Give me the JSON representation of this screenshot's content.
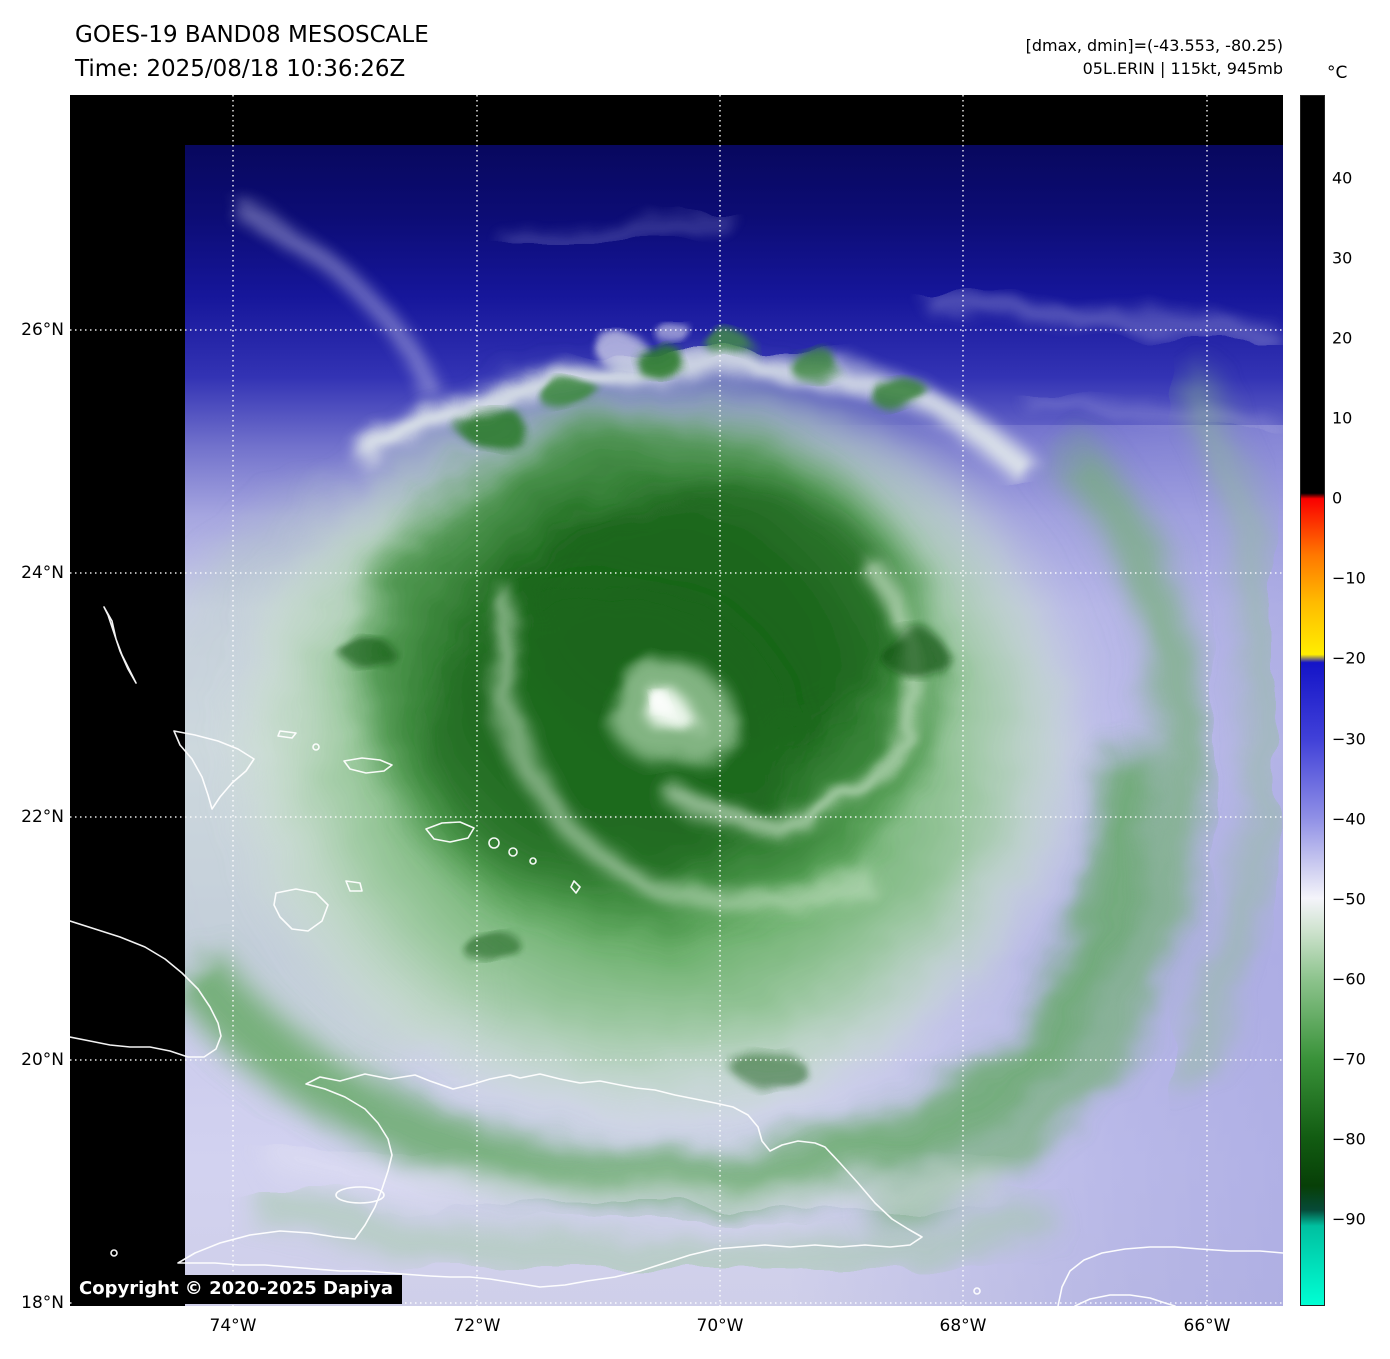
{
  "header": {
    "title": "GOES-19 BAND08 MESOSCALE",
    "time_label": "Time: 2025/08/18 10:36:26Z",
    "stats_label": "[dmax, dmin]=(-43.553, -80.25)",
    "storm_label": "05L.ERIN | 115kt, 945mb",
    "satellite": "GOES-19",
    "band": "BAND08",
    "sector": "MESOSCALE",
    "storm_id": "05L",
    "storm_name": "ERIN",
    "wind": "115kt",
    "pressure": "945mb"
  },
  "colorbar": {
    "unit_label": "°C",
    "domain": [
      50.4,
      -100.9
    ],
    "ticks": [
      {
        "value": 40,
        "label": "40"
      },
      {
        "value": 30,
        "label": "30"
      },
      {
        "value": 20,
        "label": "20"
      },
      {
        "value": 10,
        "label": "10"
      },
      {
        "value": 0,
        "label": "0"
      },
      {
        "value": -10,
        "label": "−10"
      },
      {
        "value": -20,
        "label": "−20"
      },
      {
        "value": -30,
        "label": "−30"
      },
      {
        "value": -40,
        "label": "−40"
      },
      {
        "value": -50,
        "label": "−50"
      },
      {
        "value": -60,
        "label": "−60"
      },
      {
        "value": -70,
        "label": "−70"
      },
      {
        "value": -80,
        "label": "−80"
      },
      {
        "value": -90,
        "label": "−90"
      }
    ],
    "scale_stops": [
      {
        "value": 50.4,
        "color": "#000000"
      },
      {
        "value": 0.7,
        "color": "#000000"
      },
      {
        "value": 0.0,
        "color": "#fa0000"
      },
      {
        "value": -7,
        "color": "#ff7700"
      },
      {
        "value": -13,
        "color": "#ffbb00"
      },
      {
        "value": -19.5,
        "color": "#ffee00"
      },
      {
        "value": -20.5,
        "color": "#1414c8"
      },
      {
        "value": -30,
        "color": "#4040d8"
      },
      {
        "value": -40,
        "color": "#9090e6"
      },
      {
        "value": -46,
        "color": "#ccccf0"
      },
      {
        "value": -50,
        "color": "#f4f4fa"
      },
      {
        "value": -54,
        "color": "#cfe3cf"
      },
      {
        "value": -60,
        "color": "#8ec48e"
      },
      {
        "value": -70,
        "color": "#3a933a"
      },
      {
        "value": -80,
        "color": "#125c12"
      },
      {
        "value": -86,
        "color": "#073f07"
      },
      {
        "value": -89,
        "color": "#064a38"
      },
      {
        "value": -91,
        "color": "#00c0a0"
      },
      {
        "value": -100.9,
        "color": "#00ffd4"
      }
    ]
  },
  "axes": {
    "lat_tick_labels": [
      "26°N",
      "24°N",
      "22°N",
      "20°N",
      "18°N"
    ],
    "lat_tick_values": [
      26,
      24,
      22,
      20,
      18
    ],
    "lon_tick_labels": [
      "74°W",
      "72°W",
      "70°W",
      "68°W",
      "66°W"
    ],
    "lon_tick_values": [
      -74,
      -72,
      -70,
      -68,
      -66
    ]
  },
  "map": {
    "copyright_label": "Copyright © 2020-2025 Dapiya",
    "features": [
      "hurricane-erin-cloud-shield",
      "hurricane-eye",
      "bahamas-islands",
      "turks-and-caicos",
      "cuba-coastline",
      "hispaniola-coastline",
      "puerto-rico-coastline"
    ]
  }
}
